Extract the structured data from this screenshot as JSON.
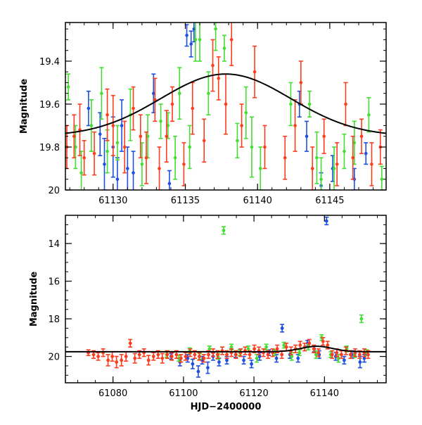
{
  "chart_data": [
    {
      "id": "zoom",
      "type": "scatter",
      "title": "",
      "xlabel": "",
      "ylabel": "Magnitude",
      "xlim": [
        61126.7,
        61148.9
      ],
      "ylim": [
        19.22,
        20.0
      ],
      "y_inverted": true,
      "x_ticks": [
        61130,
        61135,
        61140,
        61145
      ],
      "x_tick_labels": [
        "61130",
        "61135",
        "61140",
        "61145"
      ],
      "y_ticks": [
        19.4,
        19.6,
        19.8,
        20.0
      ],
      "y_tick_labels": [
        "19.4",
        "19.6",
        "19.8",
        "20"
      ],
      "model_curve": {
        "color": "#000000",
        "base": 19.75,
        "amplitude": 0.29,
        "t0": 61137.8,
        "sigma": 4.5
      },
      "series": [
        {
          "name": "blue",
          "color": "#1f4fe0",
          "x": [
            61128.3,
            61129.1,
            61129.4,
            61130.0,
            61130.3,
            61130.6,
            61131.0,
            61131.4,
            61132.8,
            61133.9,
            61135.1,
            61135.4,
            61135.6,
            61142.9,
            61143.4,
            61144.4,
            61145.2,
            61146.7,
            61147.5
          ],
          "y": [
            19.62,
            19.74,
            19.88,
            19.8,
            19.95,
            19.7,
            19.9,
            19.92,
            19.55,
            19.97,
            19.28,
            19.32,
            19.25,
            19.6,
            19.75,
            19.98,
            19.9,
            19.95,
            19.83
          ],
          "err": [
            0.08,
            0.1,
            0.12,
            0.14,
            0.1,
            0.12,
            0.1,
            0.1,
            0.09,
            0.06,
            0.05,
            0.06,
            0.06,
            0.06,
            0.07,
            0.06,
            0.06,
            0.05,
            0.05
          ]
        },
        {
          "name": "green",
          "color": "#44dd33",
          "x": [
            61126.9,
            61127.4,
            61127.8,
            61128.5,
            61129.2,
            61129.6,
            61130.3,
            61131.2,
            61132.0,
            61132.4,
            61133.3,
            61133.8,
            61134.3,
            61134.6,
            61135.3,
            61135.7,
            61136.0,
            61136.6,
            61137.1,
            61137.7,
            61138.6,
            61139.2,
            61139.6,
            61140.2,
            61142.3,
            61143.6,
            61144.1,
            61144.4,
            61145.3,
            61146.0,
            61146.7,
            61147.7,
            61148.6
          ],
          "y": [
            19.52,
            19.8,
            19.92,
            19.7,
            19.55,
            19.82,
            19.78,
            19.65,
            19.88,
            19.75,
            19.68,
            19.7,
            19.85,
            19.55,
            19.8,
            19.3,
            19.3,
            19.55,
            19.25,
            19.34,
            19.77,
            19.64,
            19.8,
            19.9,
            19.6,
            19.6,
            19.85,
            19.95,
            19.9,
            19.82,
            19.78,
            19.65,
            19.95
          ],
          "err": [
            0.06,
            0.1,
            0.1,
            0.12,
            0.12,
            0.1,
            0.08,
            0.12,
            0.1,
            0.1,
            0.08,
            0.06,
            0.1,
            0.12,
            0.1,
            0.1,
            0.1,
            0.1,
            0.1,
            0.06,
            0.08,
            0.12,
            0.14,
            0.1,
            0.1,
            0.06,
            0.12,
            0.1,
            0.1,
            0.08,
            0.1,
            0.08,
            0.06
          ]
        },
        {
          "name": "red",
          "color": "#ff3c1e",
          "x": [
            61126.8,
            61127.3,
            61127.7,
            61128.0,
            61128.7,
            61129.6,
            61130.0,
            61130.8,
            61131.4,
            61131.9,
            61132.3,
            61132.9,
            61133.2,
            61133.7,
            61134.1,
            61134.9,
            61135.5,
            61136.3,
            61136.9,
            61137.3,
            61137.8,
            61138.2,
            61138.9,
            61139.8,
            61140.5,
            61141.9,
            61142.6,
            61143.0,
            61143.8,
            61144.6,
            61145.5,
            61146.1,
            61146.6,
            61147.2,
            61147.9,
            61148.5
          ],
          "y": [
            19.8,
            19.75,
            19.72,
            19.85,
            19.83,
            19.65,
            19.7,
            19.8,
            19.62,
            19.75,
            19.85,
            19.58,
            19.9,
            19.75,
            19.6,
            19.88,
            19.62,
            19.77,
            19.42,
            19.48,
            19.6,
            19.3,
            19.7,
            19.45,
            19.8,
            19.85,
            19.7,
            19.5,
            19.9,
            19.75,
            19.88,
            19.6,
            19.85,
            19.75,
            19.88,
            19.8
          ],
          "err": [
            0.1,
            0.1,
            0.12,
            0.08,
            0.1,
            0.12,
            0.14,
            0.12,
            0.1,
            0.1,
            0.12,
            0.1,
            0.1,
            0.12,
            0.08,
            0.1,
            0.12,
            0.1,
            0.12,
            0.1,
            0.14,
            0.12,
            0.1,
            0.12,
            0.1,
            0.1,
            0.12,
            0.1,
            0.1,
            0.08,
            0.1,
            0.1,
            0.1,
            0.08,
            0.1,
            0.08
          ]
        }
      ]
    },
    {
      "id": "full",
      "type": "scatter",
      "title": "",
      "xlabel": "HJD−2400000",
      "ylabel": "Magnitude",
      "xlim": [
        61066.5,
        61157.5
      ],
      "ylim": [
        12.5,
        21.4
      ],
      "y_inverted": true,
      "x_ticks": [
        61080,
        61100,
        61120,
        61140
      ],
      "x_tick_labels": [
        "61080",
        "61100",
        "61120",
        "61140"
      ],
      "y_ticks": [
        14,
        16,
        18,
        20
      ],
      "y_tick_labels": [
        "14",
        "16",
        "18",
        "20"
      ],
      "model_curve": {
        "color": "#000000",
        "base": 19.75,
        "amplitude": 0.29,
        "t0": 61137.8,
        "sigma": 4.5
      },
      "series": [
        {
          "name": "blue",
          "color": "#1f4fe0",
          "x": [
            61096.5,
            61099.0,
            61101.2,
            61102.6,
            61104.2,
            61105.3,
            61106.9,
            61108.4,
            61110.1,
            61112.3,
            61114.8,
            61117.1,
            61119.3,
            61121.6,
            61124.2,
            61126.4,
            61128.0,
            61130.2,
            61132.5,
            61135.2,
            61137.1,
            61138.5,
            61140.6,
            61143.2,
            61145.6,
            61147.8,
            61150.1,
            61151.3
          ],
          "y": [
            20.0,
            20.3,
            20.1,
            20.4,
            20.8,
            20.2,
            20.6,
            20.0,
            20.3,
            20.2,
            19.9,
            20.2,
            20.4,
            20.0,
            19.8,
            20.1,
            18.5,
            19.9,
            20.1,
            19.3,
            19.6,
            19.9,
            12.8,
            20.0,
            20.2,
            19.9,
            20.3,
            20.1
          ],
          "err": [
            0.15,
            0.2,
            0.2,
            0.25,
            0.3,
            0.2,
            0.3,
            0.2,
            0.2,
            0.2,
            0.15,
            0.2,
            0.2,
            0.2,
            0.15,
            0.2,
            0.2,
            0.2,
            0.2,
            0.15,
            0.15,
            0.2,
            0.2,
            0.2,
            0.2,
            0.2,
            0.3,
            0.2
          ]
        },
        {
          "name": "green",
          "color": "#44dd33",
          "x": [
            61095.2,
            61098.7,
            61101.8,
            61104.6,
            61107.4,
            61109.8,
            61111.4,
            61113.6,
            61116.0,
            61118.4,
            61120.8,
            61123.5,
            61125.9,
            61128.5,
            61130.7,
            61132.9,
            61135.4,
            61137.6,
            61139.2,
            61141.8,
            61144.0,
            61146.3,
            61148.6,
            61150.5,
            61152.0
          ],
          "y": [
            19.9,
            20.1,
            19.7,
            20.0,
            19.6,
            20.0,
            13.3,
            19.5,
            19.8,
            19.6,
            20.1,
            19.5,
            19.8,
            19.4,
            20.0,
            19.8,
            19.5,
            19.9,
            19.0,
            19.9,
            20.1,
            19.6,
            19.9,
            18.0,
            19.8
          ],
          "err": [
            0.15,
            0.15,
            0.15,
            0.15,
            0.15,
            0.15,
            0.2,
            0.15,
            0.15,
            0.15,
            0.2,
            0.15,
            0.15,
            0.15,
            0.2,
            0.15,
            0.15,
            0.2,
            0.15,
            0.15,
            0.2,
            0.15,
            0.15,
            0.2,
            0.15
          ]
        },
        {
          "name": "red",
          "color": "#ff3c1e",
          "x": [
            61073.0,
            61074.5,
            61075.8,
            61077.2,
            61078.6,
            61079.8,
            61081.0,
            61082.4,
            61083.7,
            61084.9,
            61086.2,
            61087.5,
            61088.8,
            61090.1,
            61091.5,
            61092.8,
            61094.0,
            61095.4,
            61096.7,
            61098.0,
            61099.3,
            61100.6,
            61101.9,
            61103.2,
            61104.5,
            61105.8,
            61107.1,
            61108.4,
            61109.7,
            61111.0,
            61112.3,
            61113.6,
            61114.9,
            61116.2,
            61117.5,
            61118.8,
            61120.1,
            61121.4,
            61122.7,
            61124.0,
            61125.3,
            61126.6,
            61127.9,
            61129.2,
            61130.5,
            61131.8,
            61133.1,
            61134.4,
            61135.7,
            61137.0,
            61138.3,
            61139.6,
            61140.9,
            61142.2,
            61143.5,
            61144.8,
            61146.1,
            61147.4,
            61148.7,
            61150.0,
            61151.3,
            61152.4
          ],
          "y": [
            19.8,
            19.9,
            20.0,
            19.8,
            20.2,
            20.0,
            20.3,
            20.2,
            20.0,
            19.3,
            20.1,
            19.9,
            19.8,
            20.2,
            20.0,
            19.9,
            20.1,
            19.9,
            20.0,
            19.9,
            20.1,
            20.0,
            19.8,
            19.9,
            20.0,
            20.1,
            19.9,
            19.8,
            19.9,
            19.7,
            19.9,
            19.8,
            19.9,
            19.8,
            19.7,
            19.9,
            19.6,
            19.7,
            19.8,
            19.9,
            19.8,
            19.6,
            19.9,
            19.5,
            19.7,
            19.6,
            19.4,
            19.5,
            19.3,
            19.6,
            19.8,
            19.2,
            19.4,
            19.9,
            19.8,
            19.9,
            19.7,
            19.9,
            19.8,
            19.9,
            19.8,
            19.9
          ],
          "err": [
            0.15,
            0.2,
            0.2,
            0.2,
            0.3,
            0.25,
            0.3,
            0.3,
            0.25,
            0.2,
            0.25,
            0.2,
            0.2,
            0.25,
            0.2,
            0.2,
            0.25,
            0.2,
            0.2,
            0.2,
            0.2,
            0.2,
            0.2,
            0.2,
            0.2,
            0.2,
            0.2,
            0.2,
            0.2,
            0.2,
            0.2,
            0.2,
            0.2,
            0.2,
            0.2,
            0.2,
            0.2,
            0.2,
            0.2,
            0.2,
            0.2,
            0.2,
            0.2,
            0.2,
            0.2,
            0.2,
            0.2,
            0.2,
            0.2,
            0.2,
            0.2,
            0.2,
            0.2,
            0.2,
            0.2,
            0.2,
            0.2,
            0.2,
            0.2,
            0.2,
            0.2,
            0.2
          ]
        }
      ]
    }
  ]
}
